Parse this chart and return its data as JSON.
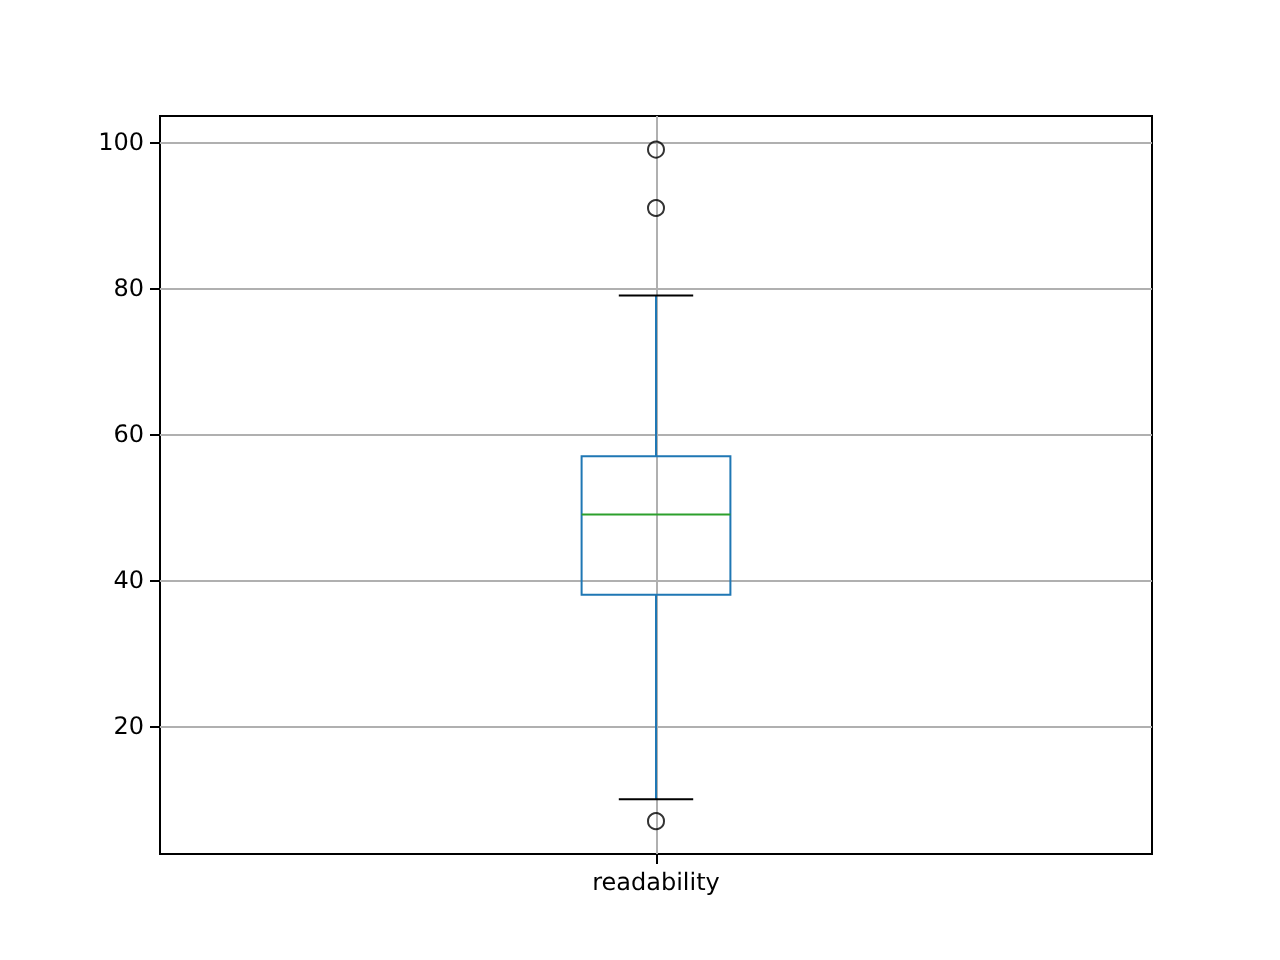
{
  "chart_data": {
    "type": "box",
    "categories": [
      "readability"
    ],
    "series": [
      {
        "color": "#1f77b4",
        "boxes": [
          {
            "low": 10,
            "q1": 38,
            "median": 49,
            "q3": 57,
            "high": 79,
            "outliers": [
              99,
              91,
              7
            ]
          }
        ]
      }
    ],
    "ylim": [
      2.5,
      103.6
    ],
    "yticks": [
      20,
      40,
      60,
      80,
      100
    ],
    "grid": true
  }
}
